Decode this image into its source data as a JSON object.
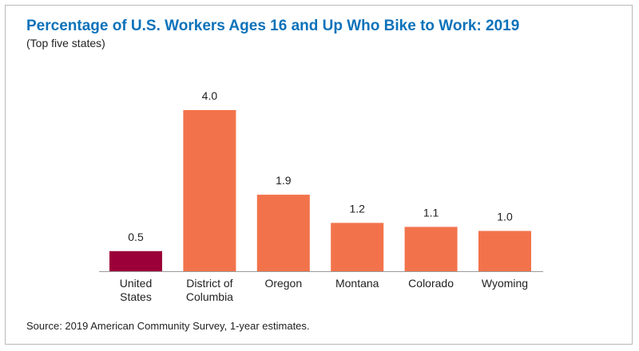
{
  "title": "Percentage of U.S. Workers Ages 16 and Up Who Bike to Work: 2019",
  "subtitle": "(Top five states)",
  "source": "Source: 2019 American Community Survey, 1-year estimates.",
  "colors": {
    "highlight": "#9b0038",
    "bar": "#f2734b",
    "title": "#0c72ba",
    "axis": "#9a9a9a"
  },
  "chart_data": {
    "type": "bar",
    "categories": [
      [
        "United",
        "States"
      ],
      [
        "District of",
        "Columbia"
      ],
      [
        "Oregon"
      ],
      [
        "Montana"
      ],
      [
        "Colorado"
      ],
      [
        "Wyoming"
      ]
    ],
    "values": [
      0.5,
      4.0,
      1.9,
      1.2,
      1.1,
      1.0
    ],
    "value_labels": [
      "0.5",
      "4.0",
      "1.9",
      "1.2",
      "1.1",
      "1.0"
    ],
    "highlight_index": 0,
    "ylim": [
      0,
      4.0
    ],
    "grid": false,
    "legend": "none"
  }
}
